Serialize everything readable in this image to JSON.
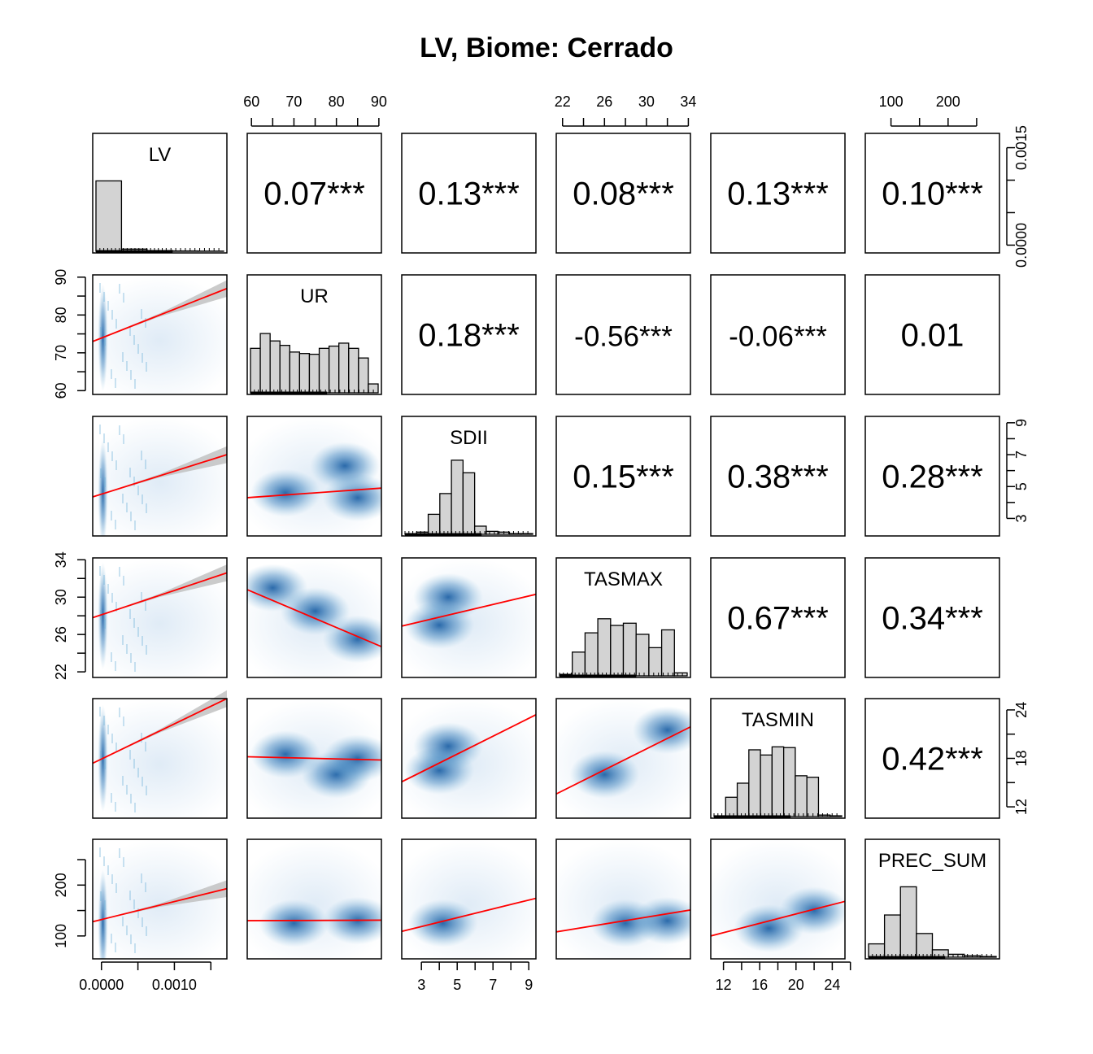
{
  "title": "LV, Biome: Cerrado",
  "variables": [
    "LV",
    "UR",
    "SDII",
    "TASMAX",
    "TASMIN",
    "PREC_SUM"
  ],
  "colors": {
    "density": "#08519c",
    "regression": "#ff0000",
    "ci_band": "#bebebe",
    "hist_fill": "#d3d3d3"
  },
  "chart_data": {
    "type": "scatter",
    "subtype": "pairs-matrix",
    "variables": [
      "LV",
      "UR",
      "SDII",
      "TASMAX",
      "TASMIN",
      "PREC_SUM"
    ],
    "ranges": {
      "LV": [
        -0.00012,
        0.00172
      ],
      "UR": [
        59.0,
        90.6
      ],
      "SDII": [
        1.9,
        9.4
      ],
      "TASMAX": [
        21.4,
        34.2
      ],
      "TASMIN": [
        10.6,
        25.4
      ],
      "PREC_SUM": [
        55,
        290
      ]
    },
    "tick_labels": {
      "LV": [
        "0.0000",
        "0.0010"
      ],
      "LV_right": [
        "0.0000",
        "0.0015"
      ],
      "UR": [
        "60",
        "70",
        "80",
        "90"
      ],
      "SDII": [
        "3",
        "5",
        "7",
        "9"
      ],
      "TASMAX": [
        "22",
        "26",
        "30",
        "34"
      ],
      "TASMIN": [
        "12",
        "16",
        "20",
        "24"
      ],
      "TASMIN_right": [
        "12",
        "18",
        "24"
      ],
      "PREC_SUM": [
        "100",
        "200"
      ]
    },
    "correlations": [
      {
        "row": "LV",
        "col": "UR",
        "label": "0.07***"
      },
      {
        "row": "LV",
        "col": "SDII",
        "label": "0.13***"
      },
      {
        "row": "LV",
        "col": "TASMAX",
        "label": "0.08***"
      },
      {
        "row": "LV",
        "col": "TASMIN",
        "label": "0.13***"
      },
      {
        "row": "LV",
        "col": "PREC_SUM",
        "label": "0.10***"
      },
      {
        "row": "UR",
        "col": "SDII",
        "label": "0.18***"
      },
      {
        "row": "UR",
        "col": "TASMAX",
        "label": "-0.56***"
      },
      {
        "row": "UR",
        "col": "TASMIN",
        "label": "-0.06***"
      },
      {
        "row": "UR",
        "col": "PREC_SUM",
        "label": "0.01"
      },
      {
        "row": "SDII",
        "col": "TASMAX",
        "label": "0.15***"
      },
      {
        "row": "SDII",
        "col": "TASMIN",
        "label": "0.38***"
      },
      {
        "row": "SDII",
        "col": "PREC_SUM",
        "label": "0.28***"
      },
      {
        "row": "TASMAX",
        "col": "TASMIN",
        "label": "0.67***"
      },
      {
        "row": "TASMAX",
        "col": "PREC_SUM",
        "label": "0.34***"
      },
      {
        "row": "TASMIN",
        "col": "PREC_SUM",
        "label": "0.42***"
      }
    ],
    "regression_lines": [
      {
        "x": "LV",
        "y": "UR",
        "y_at_xmin": 73.0,
        "y_at_xmax": 87.0,
        "ci": true
      },
      {
        "x": "LV",
        "y": "SDII",
        "y_at_xmin": 4.35,
        "y_at_xmax": 7.0,
        "ci": true
      },
      {
        "x": "LV",
        "y": "TASMAX",
        "y_at_xmin": 27.8,
        "y_at_xmax": 32.6,
        "ci": true
      },
      {
        "x": "LV",
        "y": "TASMIN",
        "y_at_xmin": 17.4,
        "y_at_xmax": 25.4,
        "ci": true
      },
      {
        "x": "LV",
        "y": "PREC_SUM",
        "y_at_xmin": 128,
        "y_at_xmax": 193,
        "ci": true
      },
      {
        "x": "UR",
        "y": "SDII",
        "y_at_xmin": 4.3,
        "y_at_xmax": 4.9
      },
      {
        "x": "UR",
        "y": "TASMAX",
        "y_at_xmin": 30.8,
        "y_at_xmax": 24.7
      },
      {
        "x": "UR",
        "y": "TASMIN",
        "y_at_xmin": 18.2,
        "y_at_xmax": 17.8
      },
      {
        "x": "UR",
        "y": "PREC_SUM",
        "y_at_xmin": 130,
        "y_at_xmax": 131
      },
      {
        "x": "SDII",
        "y": "TASMAX",
        "y_at_xmin": 26.9,
        "y_at_xmax": 30.3
      },
      {
        "x": "SDII",
        "y": "TASMIN",
        "y_at_xmin": 15.1,
        "y_at_xmax": 23.4
      },
      {
        "x": "SDII",
        "y": "PREC_SUM",
        "y_at_xmin": 109,
        "y_at_xmax": 174
      },
      {
        "x": "TASMAX",
        "y": "TASMIN",
        "y_at_xmin": 13.6,
        "y_at_xmax": 21.9
      },
      {
        "x": "TASMAX",
        "y": "PREC_SUM",
        "y_at_xmin": 108,
        "y_at_xmax": 151
      },
      {
        "x": "TASMIN",
        "y": "PREC_SUM",
        "y_at_xmin": 100,
        "y_at_xmax": 168
      }
    ],
    "histograms": {
      "LV": [
        0.95,
        0.03,
        0.01,
        0.005,
        0.003
      ],
      "UR": [
        0.6,
        0.8,
        0.7,
        0.64,
        0.55,
        0.53,
        0.52,
        0.6,
        0.63,
        0.67,
        0.6,
        0.47,
        0.12
      ],
      "SDII": [
        0.01,
        0.03,
        0.27,
        0.55,
        1.0,
        0.83,
        0.11,
        0.04,
        0.03,
        0.01,
        0.01
      ],
      "TASMAX": [
        0.02,
        0.32,
        0.58,
        0.77,
        0.68,
        0.71,
        0.56,
        0.38,
        0.62,
        0.04
      ],
      "TASMIN": [
        0.01,
        0.26,
        0.45,
        0.9,
        0.83,
        0.94,
        0.93,
        0.55,
        0.53,
        0.02,
        0.01
      ],
      "PREC_SUM": [
        0.18,
        0.57,
        0.95,
        0.32,
        0.1,
        0.04,
        0.02,
        0.01
      ]
    },
    "density_clusters": {
      "UR-SDII": [
        [
          68,
          4.6
        ],
        [
          85,
          4.3
        ],
        [
          82,
          6.3
        ]
      ],
      "UR-TASMAX": [
        [
          65,
          31.0
        ],
        [
          75,
          28.5
        ],
        [
          85,
          25.5
        ]
      ],
      "UR-TASMIN": [
        [
          68,
          18.5
        ],
        [
          80,
          16.0
        ],
        [
          85,
          18.0
        ]
      ],
      "UR-PREC_SUM": [
        [
          70,
          125
        ],
        [
          85,
          130
        ]
      ],
      "SDII-TASMAX": [
        [
          4.0,
          27.0
        ],
        [
          4.5,
          30.0
        ]
      ],
      "SDII-TASMIN": [
        [
          4.0,
          16.5
        ],
        [
          4.5,
          19.5
        ]
      ],
      "SDII-PREC_SUM": [
        [
          4.2,
          125
        ]
      ],
      "TASMAX-TASMIN": [
        [
          26,
          16.0
        ],
        [
          32,
          21.5
        ]
      ],
      "TASMAX-PREC_SUM": [
        [
          28,
          125
        ],
        [
          32,
          130
        ]
      ],
      "TASMIN-PREC_SUM": [
        [
          17,
          115
        ],
        [
          22,
          150
        ]
      ],
      "LV-UR": [
        [
          2e-05,
          74
        ]
      ],
      "LV-SDII": [
        [
          2e-05,
          4.6
        ]
      ],
      "LV-TASMAX": [
        [
          2e-05,
          28
        ]
      ],
      "LV-TASMIN": [
        [
          2e-05,
          18
        ]
      ],
      "LV-PREC_SUM": [
        [
          2e-05,
          125
        ]
      ]
    }
  }
}
